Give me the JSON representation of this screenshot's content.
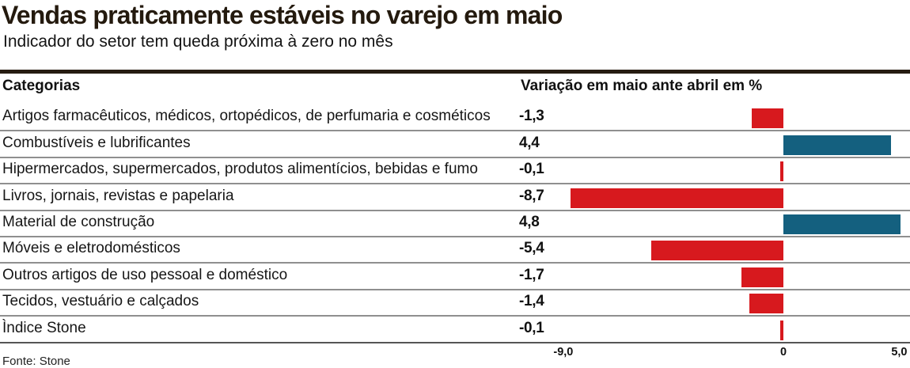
{
  "title": "Vendas praticamente estáveis no varejo em maio",
  "subtitle": "Indicador do setor tem queda próxima à zero no mês",
  "table": {
    "header_left": "Categorias",
    "header_right": "Variação em maio ante abril em %"
  },
  "source": "Fonte: Stone",
  "colors": {
    "negative_bar": "#d7191e",
    "positive_bar": "#14607f",
    "title_text": "#241a0e",
    "rule": "#261c11",
    "row_line": "#8f8f8f"
  },
  "chart_data": {
    "type": "bar",
    "orientation": "horizontal",
    "title": "Vendas praticamente estáveis no varejo em maio",
    "subtitle": "Indicador do setor tem queda próxima à zero no mês",
    "xlabel": "Variação em maio ante abril em %",
    "categories": [
      "Artigos farmacêuticos, médicos, ortopédicos, de perfumaria e cosméticos",
      "Combustíveis e lubrificantes",
      "Hipermercados, supermercados, produtos alimentícios, bebidas e fumo",
      "Livros, jornais, revistas e papelaria",
      "Material de construção",
      "Móveis e eletrodomésticos",
      "Outros artigos de uso pessoal e doméstico",
      "Tecidos, vestuário e calçados",
      "Ìndice Stone"
    ],
    "values": [
      -1.3,
      4.4,
      -0.1,
      -8.7,
      4.8,
      -5.4,
      -1.7,
      -1.4,
      -0.1
    ],
    "value_labels": [
      "-1,3",
      "4,4",
      "-0,1",
      "-8,7",
      "4,8",
      "-5,4",
      "-1,7",
      "-1,4",
      "-0,1"
    ],
    "xlim": [
      -9.0,
      5.0
    ],
    "ticks": [
      {
        "label": "-9,0",
        "value": -9.0
      },
      {
        "label": "0",
        "value": 0
      },
      {
        "label": "5,0",
        "value": 5.0
      }
    ],
    "grid": false,
    "legend": null,
    "negative_color": "#d7191e",
    "positive_color": "#14607f",
    "source": "Fonte: Stone"
  }
}
